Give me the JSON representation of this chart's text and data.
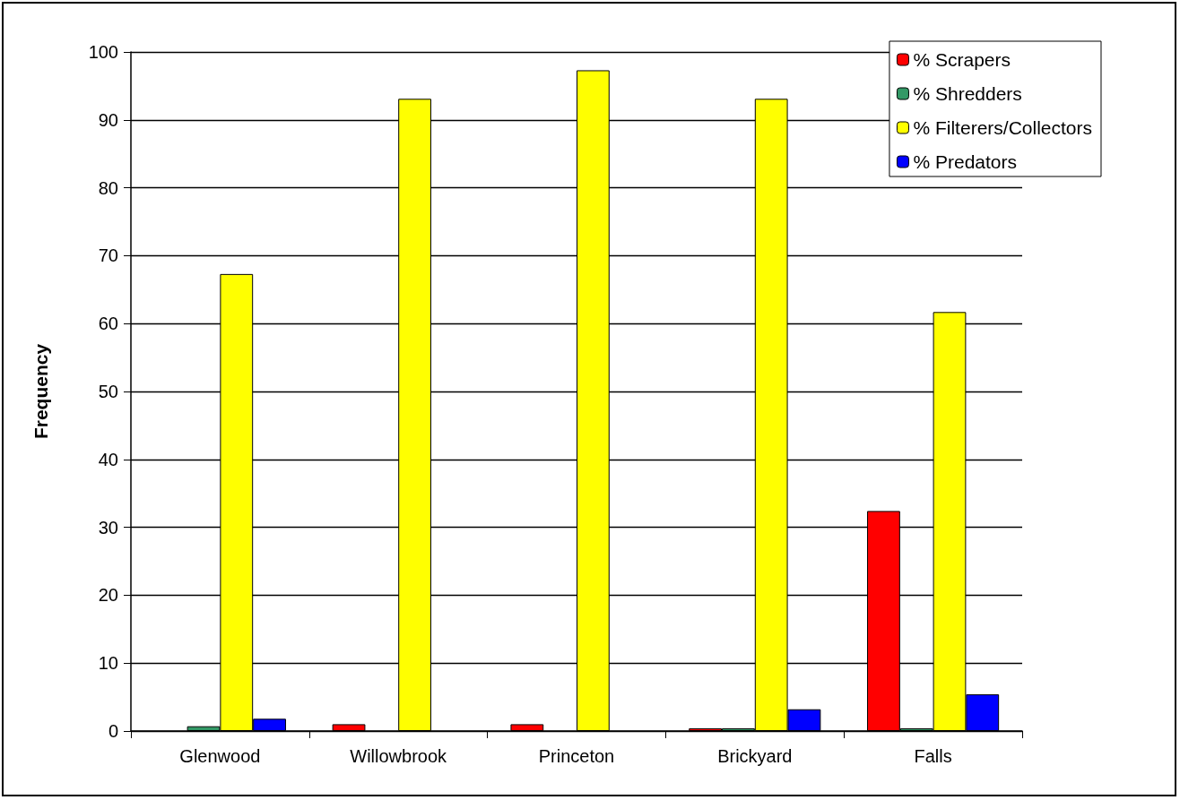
{
  "chart_data": {
    "type": "bar",
    "ylabel": "Frequency",
    "categories": [
      "Glenwood",
      "Willowbrook",
      "Princeton",
      "Brickyard",
      "Falls"
    ],
    "series": [
      {
        "name": "% Scrapers",
        "color": "#ff0000",
        "values": [
          null,
          1.0,
          1.0,
          0.4,
          32.4
        ]
      },
      {
        "name": "% Shredders",
        "color": "#339966",
        "values": [
          0.7,
          null,
          null,
          0.4,
          0.4
        ]
      },
      {
        "name": "% Filterers/Collectors",
        "color": "#ffff00",
        "values": [
          67.3,
          93.1,
          97.3,
          93.1,
          61.7
        ]
      },
      {
        "name": "% Predators",
        "color": "#0000ff",
        "values": [
          1.8,
          null,
          null,
          3.2,
          5.4
        ]
      }
    ],
    "ylim": [
      0,
      100
    ],
    "yticks": [
      0,
      10,
      20,
      30,
      40,
      50,
      60,
      70,
      80,
      90,
      100
    ],
    "grid": "y",
    "legend": "top right"
  }
}
